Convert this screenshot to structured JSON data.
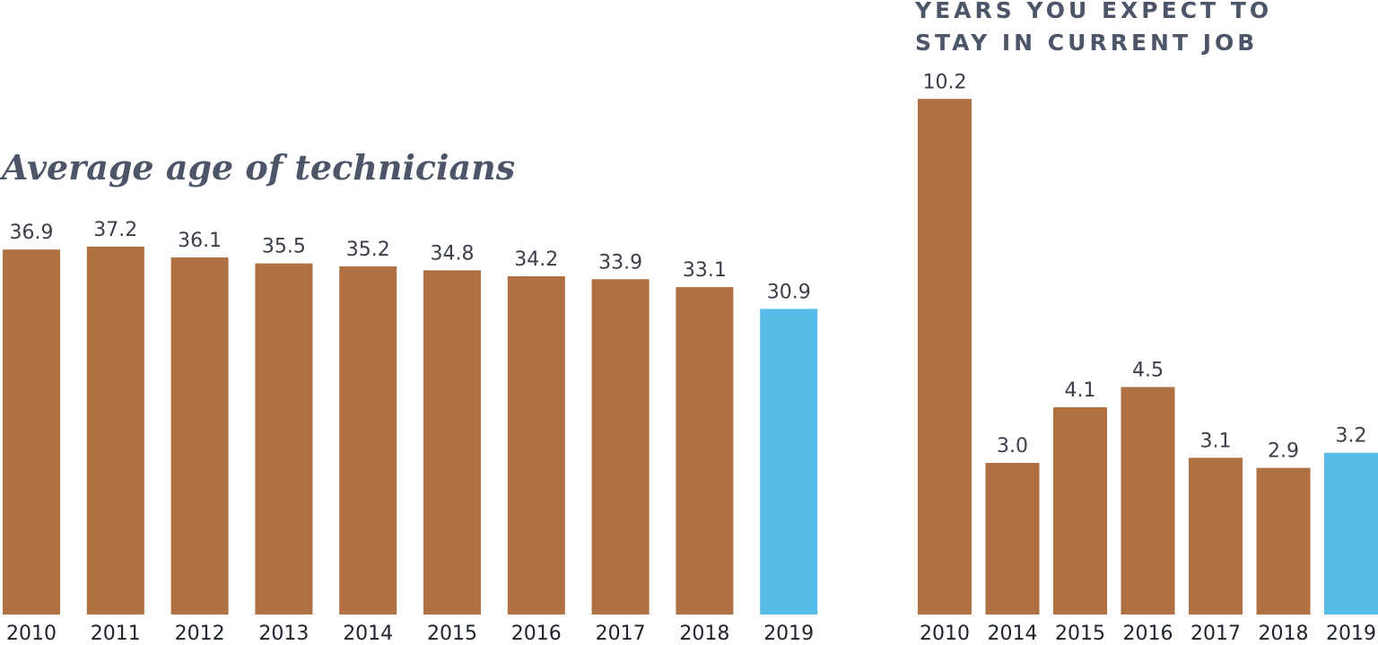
{
  "colors": {
    "primary_bar": "#b07042",
    "highlight_bar": "#58bce9",
    "title_text": "#4d5668"
  },
  "chart_data": [
    {
      "type": "bar",
      "title": "Average age of technicians",
      "categories": [
        "2010",
        "2011",
        "2012",
        "2013",
        "2014",
        "2015",
        "2016",
        "2017",
        "2018",
        "2019"
      ],
      "values": [
        36.9,
        37.2,
        36.1,
        35.5,
        35.2,
        34.8,
        34.2,
        33.9,
        33.1,
        30.9
      ],
      "value_labels": [
        "36.9",
        "37.2",
        "36.1",
        "35.5",
        "35.2",
        "34.8",
        "34.2",
        "33.9",
        "33.1",
        "30.9"
      ],
      "highlight_category": "2019",
      "xlabel": "",
      "ylabel": "",
      "ylim": [
        0,
        40
      ],
      "grid": false
    },
    {
      "type": "bar",
      "title_lines": [
        "YEARS YOU EXPECT TO",
        "STAY IN CURRENT JOB"
      ],
      "categories": [
        "2010",
        "2014",
        "2015",
        "2016",
        "2017",
        "2018",
        "2019"
      ],
      "values": [
        10.2,
        3.0,
        4.1,
        4.5,
        3.1,
        2.9,
        3.2
      ],
      "value_labels": [
        "10.2",
        "3.0",
        "4.1",
        "4.5",
        "3.1",
        "2.9",
        "3.2"
      ],
      "highlight_category": "2019",
      "xlabel": "",
      "ylabel": "",
      "ylim": [
        0,
        11.5
      ],
      "grid": false
    }
  ]
}
